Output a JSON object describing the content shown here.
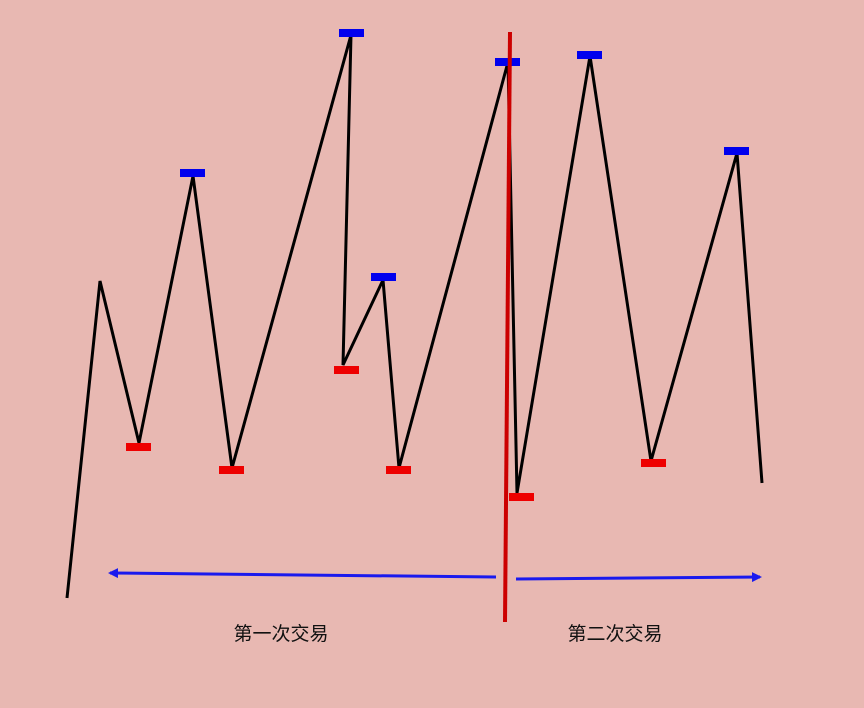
{
  "labels": {
    "first_trade": "第一次交易",
    "second_trade": "第二次交易"
  },
  "colors": {
    "background": "#e8b8b2",
    "price_line": "#000000",
    "divider": "#cc0000",
    "high_marker": "#0000ee",
    "low_marker": "#ee0000",
    "arrow": "#1a1aee"
  }
}
